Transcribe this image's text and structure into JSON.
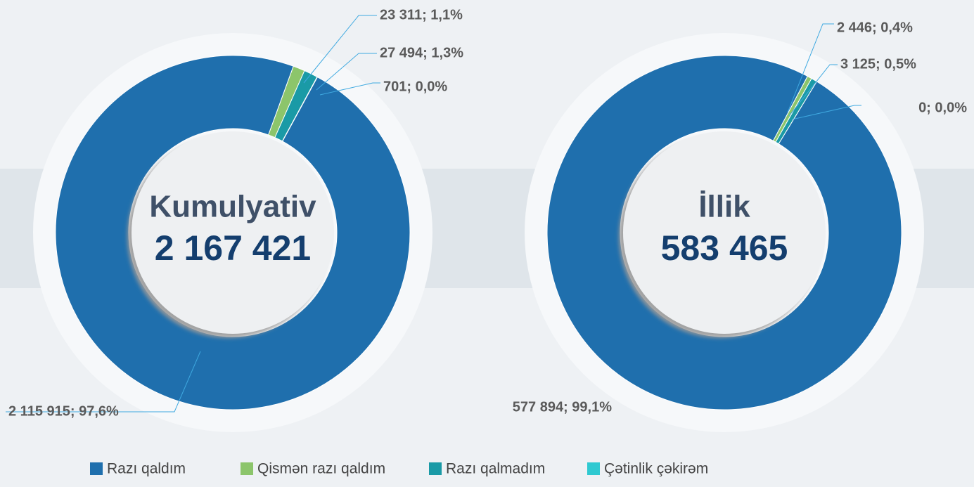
{
  "legend": {
    "labels": [
      "Razı qaldım",
      "Qismən razı qaldım",
      "Razı qalmadım",
      "Çətinlik çəkirəm"
    ],
    "colors": [
      "#1f6fad",
      "#8cc56b",
      "#1a9aa6",
      "#2fc9d1"
    ]
  },
  "chart_data": [
    {
      "type": "pie",
      "title": "Kumulyativ",
      "subtitle": "2 167 421",
      "values": [
        2115915,
        23311,
        27494,
        701
      ],
      "value_labels": [
        "2 115 915; 97,6%",
        "23 311; 1,1%",
        "27 494; 1,3%",
        "701; 0,0%"
      ]
    },
    {
      "type": "pie",
      "title": "İllik",
      "subtitle": "583 465",
      "values": [
        577894,
        2446,
        3125,
        0
      ],
      "value_labels": [
        "577 894; 99,1%",
        "2 446; 0,4%",
        "3 125; 0,5%",
        "0; 0,0%"
      ]
    }
  ]
}
